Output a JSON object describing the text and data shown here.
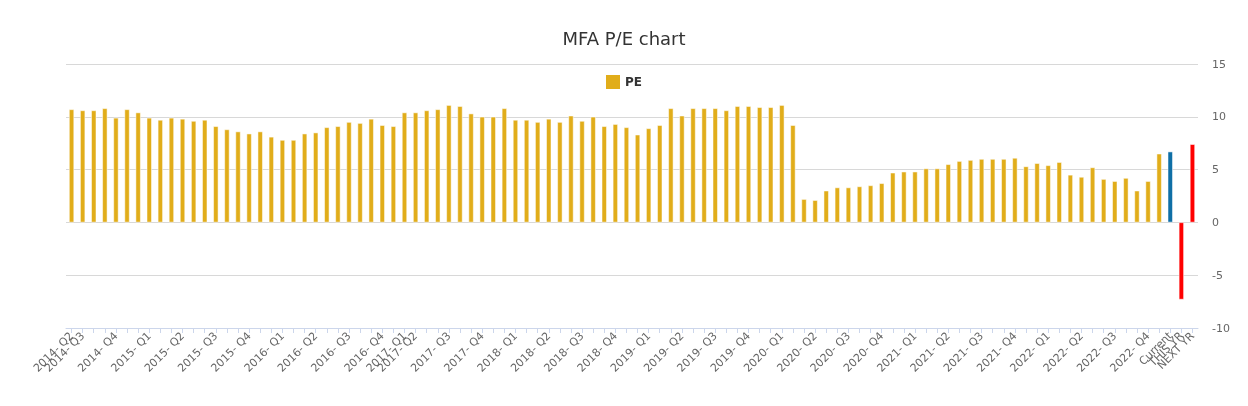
{
  "chart_data": {
    "type": "bar",
    "title": "MFA P/E chart",
    "categories": [
      "2014- Q2",
      "2014- Q3",
      null,
      null,
      "2014- Q4",
      null,
      null,
      "2015- Q1",
      null,
      null,
      "2015- Q2",
      null,
      null,
      "2015- Q3",
      null,
      null,
      "2015- Q4",
      null,
      null,
      "2016- Q1",
      null,
      null,
      "2016- Q2",
      null,
      null,
      "2016- Q3",
      null,
      null,
      "2016- Q4",
      null,
      "2017- Q1",
      "2017- Q2",
      null,
      null,
      "2017- Q3",
      null,
      null,
      "2017- Q4",
      null,
      null,
      "2018- Q1",
      null,
      null,
      "2018- Q2",
      null,
      null,
      "2018- Q3",
      null,
      null,
      "2018- Q4",
      null,
      null,
      "2019- Q1",
      null,
      null,
      "2019- Q2",
      null,
      null,
      "2019- Q3",
      null,
      null,
      "2019- Q4",
      null,
      null,
      "2020- Q1",
      null,
      null,
      "2020- Q2",
      null,
      null,
      "2020- Q3",
      null,
      null,
      "2020- Q4",
      null,
      null,
      "2021- Q1",
      null,
      null,
      "2021- Q2",
      null,
      null,
      "2021- Q3",
      null,
      null,
      "2021- Q4",
      null,
      null,
      "2022- Q1",
      null,
      null,
      "2022- Q2",
      null,
      null,
      "2022- Q3",
      null,
      null,
      "2022- Q4",
      null,
      "Current",
      "THIS YR",
      "NEXT YR"
    ],
    "series": [
      {
        "name": "PE",
        "color": "#e1ad1a",
        "values": [
          10.7,
          10.6,
          10.6,
          10.8,
          9.9,
          10.7,
          10.4,
          9.9,
          9.7,
          9.9,
          9.8,
          9.6,
          9.7,
          9.1,
          8.8,
          8.6,
          8.4,
          8.6,
          8.1,
          7.8,
          7.8,
          8.4,
          8.5,
          9.0,
          9.1,
          9.5,
          9.4,
          9.8,
          9.2,
          9.1,
          10.4,
          10.4,
          10.6,
          10.7,
          11.1,
          11.0,
          10.3,
          10.0,
          10.0,
          10.8,
          9.7,
          9.7,
          9.5,
          9.8,
          9.5,
          10.1,
          9.6,
          10.0,
          9.1,
          9.3,
          9.0,
          8.3,
          8.9,
          9.2,
          10.8,
          10.1,
          10.8,
          10.8,
          10.8,
          10.6,
          11.0,
          11.0,
          10.9,
          10.9,
          11.1,
          9.2,
          2.2,
          2.1,
          3.0,
          3.3,
          3.3,
          3.4,
          3.5,
          3.7,
          4.7,
          4.8,
          4.8,
          5.1,
          5.1,
          5.5,
          5.8,
          5.9,
          6.0,
          6.0,
          6.0,
          6.1,
          5.3,
          5.6,
          5.4,
          5.7,
          4.5,
          4.3,
          5.2,
          4.1,
          3.9,
          4.2,
          3.0,
          3.9,
          6.5,
          6.7,
          -7.3,
          7.4
        ],
        "colors": [
          "#e1ad1a",
          "#e1ad1a",
          "#e1ad1a",
          "#e1ad1a",
          "#e1ad1a",
          "#e1ad1a",
          "#e1ad1a",
          "#e1ad1a",
          "#e1ad1a",
          "#e1ad1a",
          "#e1ad1a",
          "#e1ad1a",
          "#e1ad1a",
          "#e1ad1a",
          "#e1ad1a",
          "#e1ad1a",
          "#e1ad1a",
          "#e1ad1a",
          "#e1ad1a",
          "#e1ad1a",
          "#e1ad1a",
          "#e1ad1a",
          "#e1ad1a",
          "#e1ad1a",
          "#e1ad1a",
          "#e1ad1a",
          "#e1ad1a",
          "#e1ad1a",
          "#e1ad1a",
          "#e1ad1a",
          "#e1ad1a",
          "#e1ad1a",
          "#e1ad1a",
          "#e1ad1a",
          "#e1ad1a",
          "#e1ad1a",
          "#e1ad1a",
          "#e1ad1a",
          "#e1ad1a",
          "#e1ad1a",
          "#e1ad1a",
          "#e1ad1a",
          "#e1ad1a",
          "#e1ad1a",
          "#e1ad1a",
          "#e1ad1a",
          "#e1ad1a",
          "#e1ad1a",
          "#e1ad1a",
          "#e1ad1a",
          "#e1ad1a",
          "#e1ad1a",
          "#e1ad1a",
          "#e1ad1a",
          "#e1ad1a",
          "#e1ad1a",
          "#e1ad1a",
          "#e1ad1a",
          "#e1ad1a",
          "#e1ad1a",
          "#e1ad1a",
          "#e1ad1a",
          "#e1ad1a",
          "#e1ad1a",
          "#e1ad1a",
          "#e1ad1a",
          "#e1ad1a",
          "#e1ad1a",
          "#e1ad1a",
          "#e1ad1a",
          "#e1ad1a",
          "#e1ad1a",
          "#e1ad1a",
          "#e1ad1a",
          "#e1ad1a",
          "#e1ad1a",
          "#e1ad1a",
          "#e1ad1a",
          "#e1ad1a",
          "#e1ad1a",
          "#e1ad1a",
          "#e1ad1a",
          "#e1ad1a",
          "#e1ad1a",
          "#e1ad1a",
          "#e1ad1a",
          "#e1ad1a",
          "#e1ad1a",
          "#e1ad1a",
          "#e1ad1a",
          "#e1ad1a",
          "#e1ad1a",
          "#e1ad1a",
          "#e1ad1a",
          "#e1ad1a",
          "#e1ad1a",
          "#e1ad1a",
          "#e1ad1a",
          "#e1ad1a",
          "#0f6fa6",
          "#ff0000",
          "#ff0000"
        ]
      }
    ],
    "ylim": [
      -10,
      15
    ],
    "yticks": [
      -10,
      -5,
      0,
      5,
      10,
      15
    ],
    "grid": "y",
    "legend": "top"
  }
}
